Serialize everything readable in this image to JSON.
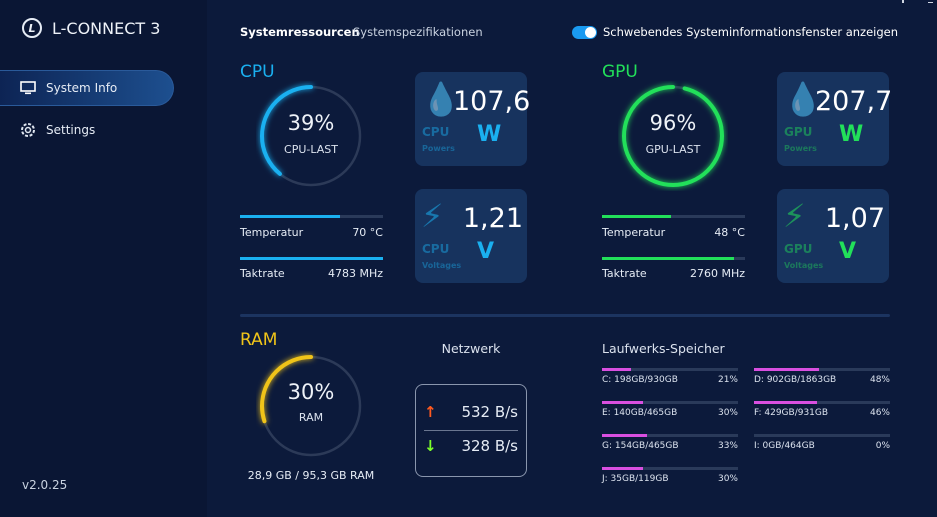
{
  "app": {
    "title": "L-CONNECT 3",
    "version": "v2.0.25"
  },
  "sidebar": {
    "items": [
      {
        "label": "System Info",
        "icon": "monitor-icon",
        "active": true
      },
      {
        "label": "Settings",
        "icon": "gear-icon",
        "active": false
      }
    ]
  },
  "tabs": [
    {
      "label": "Systemressourcen",
      "active": true
    },
    {
      "label": "Systemspezifikationen",
      "active": false
    }
  ],
  "toggle": {
    "label": "Schwebendes Systeminformationsfenster anzeigen",
    "on": true
  },
  "colors": {
    "cpu": "#1ab0f0",
    "gpu": "#22e05a",
    "ram": "#f0c419",
    "drive": "#d94fe0",
    "up": "#ff5a1f",
    "down": "#7cff2a"
  },
  "cpu": {
    "title": "CPU",
    "load_pct": 39,
    "load_text": "39%",
    "load_label": "CPU-LAST",
    "power": {
      "value": "107,6",
      "unit": "W",
      "label": "CPU",
      "sub": "Powers"
    },
    "voltage": {
      "value": "1,21",
      "unit": "V",
      "label": "CPU",
      "sub": "Voltages"
    },
    "temp": {
      "label": "Temperatur",
      "value": "70 °C",
      "fill": 0.7
    },
    "clock": {
      "label": "Taktrate",
      "value": "4783 MHz",
      "fill": 1.0
    }
  },
  "gpu": {
    "title": "GPU",
    "load_pct": 96,
    "load_text": "96%",
    "load_label": "GPU-LAST",
    "power": {
      "value": "207,7",
      "unit": "W",
      "label": "GPU",
      "sub": "Powers"
    },
    "voltage": {
      "value": "1,07",
      "unit": "V",
      "label": "GPU",
      "sub": "Voltages"
    },
    "temp": {
      "label": "Temperatur",
      "value": "48 °C",
      "fill": 0.48
    },
    "clock": {
      "label": "Taktrate",
      "value": "2760 MHz",
      "fill": 0.92
    }
  },
  "ram": {
    "title": "RAM",
    "load_pct": 30,
    "load_text": "30%",
    "load_label": "RAM",
    "usage": "28,9 GB / 95,3 GB RAM"
  },
  "network": {
    "title": "Netzwerk",
    "upload": "532 B/s",
    "download": "328 B/s"
  },
  "drives": {
    "title": "Laufwerks-Speicher",
    "items": [
      {
        "label": "C: 198GB/930GB",
        "pct": "21%",
        "fill": 0.21
      },
      {
        "label": "D: 902GB/1863GB",
        "pct": "48%",
        "fill": 0.48
      },
      {
        "label": "E: 140GB/465GB",
        "pct": "30%",
        "fill": 0.3
      },
      {
        "label": "F: 429GB/931GB",
        "pct": "46%",
        "fill": 0.46
      },
      {
        "label": "G: 154GB/465GB",
        "pct": "33%",
        "fill": 0.33
      },
      {
        "label": "I: 0GB/464GB",
        "pct": "0%",
        "fill": 0
      },
      {
        "label": "J: 35GB/119GB",
        "pct": "30%",
        "fill": 0.3
      }
    ]
  }
}
